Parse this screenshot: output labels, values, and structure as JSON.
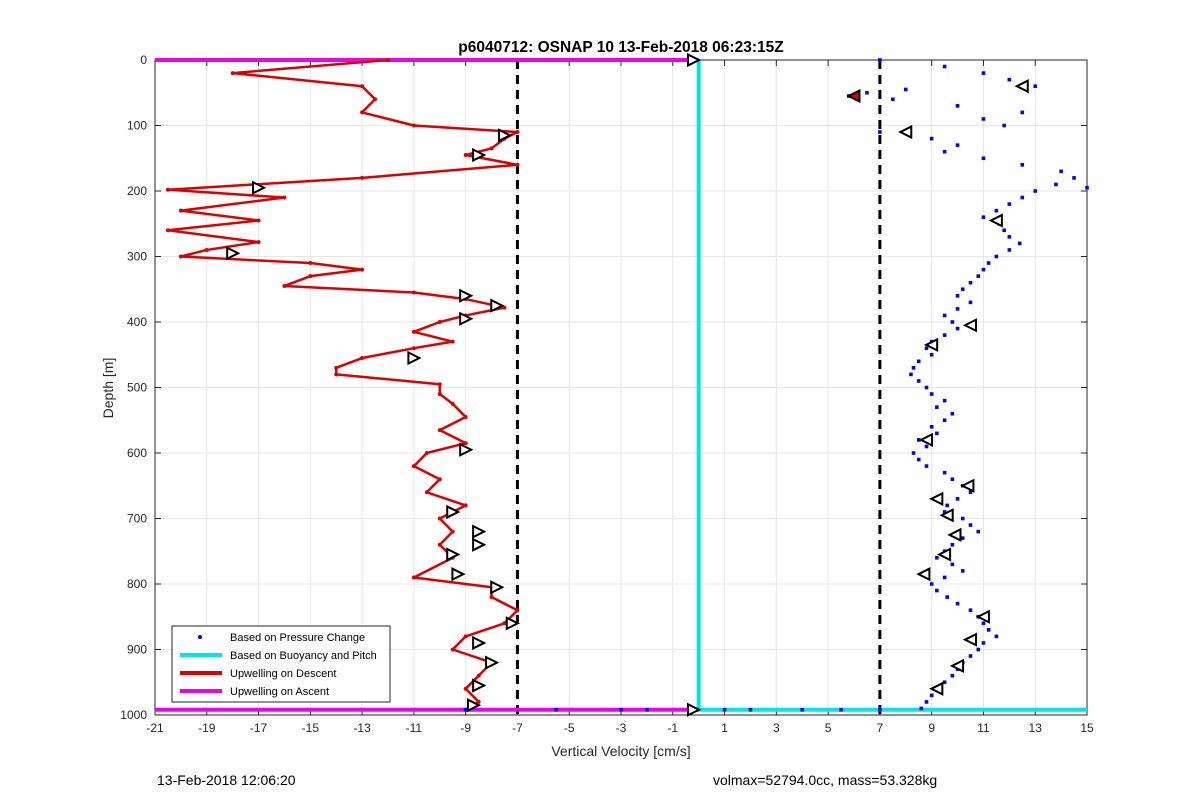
{
  "footer": {
    "left": "13-Feb-2018 12:06:20",
    "right": "volmax=52794.0cc, mass=53.328kg"
  },
  "colors": {
    "pressure": "#0000ff",
    "buoyancy": "#00e5ee",
    "descent": "#dd0000",
    "ascent": "#ee00ee",
    "grid": "#e6e6e6",
    "threshold": "#000000"
  },
  "chart_data": {
    "type": "scatter",
    "title": "p6040712: OSNAP 10 13-Feb-2018 06:23:15Z",
    "xlabel": "Vertical Velocity [cm/s]",
    "ylabel": "Depth [m]",
    "xlim": [
      -21,
      15
    ],
    "ylim": [
      0,
      1000
    ],
    "y_reversed": true,
    "x_ticks": [
      "-21",
      "-19",
      "-17",
      "-15",
      "-13",
      "-11",
      "-9",
      "-7",
      "-5",
      "-3",
      "-1",
      "1",
      "3",
      "5",
      "7",
      "9",
      "11",
      "13",
      "15"
    ],
    "y_ticks": [
      "0",
      "100",
      "200",
      "300",
      "400",
      "500",
      "600",
      "700",
      "800",
      "900",
      "1000"
    ],
    "grid": true,
    "legend_position": "bottom-left",
    "legend": [
      {
        "label": "Based on Pressure Change",
        "style": "dots"
      },
      {
        "label": "Based on Buoyancy and Pitch",
        "style": "line"
      },
      {
        "label": "Upwelling on Descent",
        "style": "line"
      },
      {
        "label": "Upwelling on Ascent",
        "style": "line"
      }
    ],
    "threshold_lines_x": [
      -7,
      7
    ],
    "buoyancy_series": {
      "x": [
        0,
        0,
        15
      ],
      "y": [
        0,
        992,
        992
      ]
    },
    "ascent_series": {
      "x": [
        -21,
        0,
        0,
        -21
      ],
      "y": [
        0,
        0,
        992,
        992
      ]
    },
    "descent_series": {
      "y": [
        0,
        20,
        40,
        60,
        80,
        100,
        110,
        120,
        135,
        145,
        160,
        180,
        198,
        210,
        230,
        245,
        260,
        278,
        290,
        300,
        310,
        320,
        330,
        345,
        355,
        365,
        378,
        390,
        400,
        415,
        430,
        440,
        455,
        470,
        480,
        495,
        510,
        525,
        545,
        565,
        585,
        600,
        620,
        640,
        660,
        680,
        700,
        720,
        740,
        760,
        790,
        805,
        820,
        840,
        860,
        880,
        900,
        920,
        940,
        960,
        980,
        992
      ],
      "x": [
        -12,
        -18,
        -13,
        -12.5,
        -13,
        -11,
        -7,
        -7.5,
        -8,
        -9,
        -7,
        -13,
        -20.5,
        -16,
        -20,
        -17,
        -20.5,
        -17,
        -19,
        -20,
        -15,
        -13,
        -15,
        -16,
        -11,
        -9,
        -7.5,
        -9,
        -10,
        -11,
        -9.5,
        -11,
        -13,
        -14,
        -14,
        -10,
        -10,
        -9.5,
        -9,
        -10,
        -9,
        -10.5,
        -11,
        -10,
        -10.5,
        -9,
        -10,
        -9.5,
        -10,
        -9.5,
        -11,
        -8,
        -8,
        -7,
        -7.5,
        -9,
        -9.5,
        -8,
        -8.5,
        -9,
        -8.5,
        -9
      ]
    },
    "pressure_series": {
      "y": [
        0,
        10,
        20,
        30,
        40,
        45,
        50,
        55,
        60,
        70,
        80,
        90,
        100,
        110,
        120,
        130,
        140,
        150,
        160,
        170,
        180,
        190,
        195,
        200,
        210,
        220,
        230,
        240,
        250,
        260,
        270,
        280,
        290,
        300,
        310,
        320,
        330,
        340,
        350,
        360,
        370,
        380,
        390,
        400,
        410,
        420,
        430,
        440,
        450,
        460,
        470,
        480,
        490,
        500,
        510,
        520,
        530,
        540,
        550,
        560,
        570,
        580,
        590,
        600,
        610,
        620,
        630,
        640,
        650,
        660,
        670,
        680,
        690,
        700,
        710,
        720,
        730,
        740,
        750,
        760,
        770,
        780,
        790,
        800,
        810,
        820,
        830,
        840,
        850,
        860,
        870,
        880,
        890,
        900,
        910,
        920,
        930,
        940,
        950,
        960,
        970,
        980,
        990
      ],
      "x": [
        7,
        9.5,
        11,
        12,
        13,
        8,
        6.5,
        5.8,
        7.5,
        10,
        12.5,
        11,
        11.8,
        7,
        9,
        10,
        9.5,
        11,
        12.5,
        14,
        14.5,
        13.8,
        15,
        13,
        12.5,
        12,
        11.5,
        11,
        11.6,
        11.8,
        12,
        12.4,
        12,
        11.5,
        11.2,
        11,
        10.8,
        10.5,
        10.2,
        10,
        10.5,
        10,
        9.5,
        9.8,
        10,
        9.5,
        9,
        8.8,
        9,
        8.5,
        8.3,
        8.2,
        8.5,
        8.8,
        9,
        9.5,
        9.2,
        9.8,
        9.5,
        9.0,
        9.2,
        8.5,
        8.8,
        8.3,
        8.5,
        8.8,
        9.5,
        9.8,
        10.2,
        10.5,
        10,
        9.6,
        9.5,
        10.2,
        10.5,
        10.8,
        10.2,
        9.8,
        9.5,
        9.2,
        9.8,
        10.2,
        9.5,
        9.0,
        9.2,
        9.6,
        10,
        10.5,
        10.8,
        11,
        11.2,
        11.5,
        11,
        10.8,
        10.5,
        10.2,
        10.0,
        9.8,
        9.5,
        9.2,
        9.0,
        8.8,
        8.6
      ]
    },
    "pressure_near_surface_x": [
      -9,
      -5.5,
      -3,
      -2,
      1,
      2,
      4,
      5.5,
      7
    ],
    "marker_descent": [
      {
        "x": -0.2,
        "y": 0
      },
      {
        "x": -7.5,
        "y": 115
      },
      {
        "x": -8.5,
        "y": 145
      },
      {
        "x": -17,
        "y": 195
      },
      {
        "x": -18,
        "y": 295
      },
      {
        "x": -9,
        "y": 360
      },
      {
        "x": -7.8,
        "y": 375
      },
      {
        "x": -9,
        "y": 395
      },
      {
        "x": -11,
        "y": 455
      },
      {
        "x": -9,
        "y": 595
      },
      {
        "x": -9.5,
        "y": 690
      },
      {
        "x": -8.5,
        "y": 720
      },
      {
        "x": -8.5,
        "y": 740
      },
      {
        "x": -9.5,
        "y": 755
      },
      {
        "x": -9.3,
        "y": 785
      },
      {
        "x": -7.8,
        "y": 805
      },
      {
        "x": -7.2,
        "y": 860
      },
      {
        "x": -8.5,
        "y": 890
      },
      {
        "x": -8,
        "y": 920
      },
      {
        "x": -8.5,
        "y": 955
      },
      {
        "x": -8.7,
        "y": 985
      },
      {
        "x": -0.2,
        "y": 992
      }
    ],
    "marker_ascent": [
      {
        "x": 6,
        "y": 55
      },
      {
        "x": 12.5,
        "y": 40
      },
      {
        "x": 8,
        "y": 110
      },
      {
        "x": 11.5,
        "y": 245
      },
      {
        "x": 10.5,
        "y": 405
      },
      {
        "x": 9,
        "y": 435
      },
      {
        "x": 8.8,
        "y": 580
      },
      {
        "x": 10.4,
        "y": 650
      },
      {
        "x": 9.2,
        "y": 670
      },
      {
        "x": 9.6,
        "y": 695
      },
      {
        "x": 9.9,
        "y": 725
      },
      {
        "x": 9.5,
        "y": 755
      },
      {
        "x": 8.7,
        "y": 785
      },
      {
        "x": 11,
        "y": 850
      },
      {
        "x": 10.5,
        "y": 885
      },
      {
        "x": 10,
        "y": 925
      },
      {
        "x": 9.2,
        "y": 960
      }
    ]
  }
}
